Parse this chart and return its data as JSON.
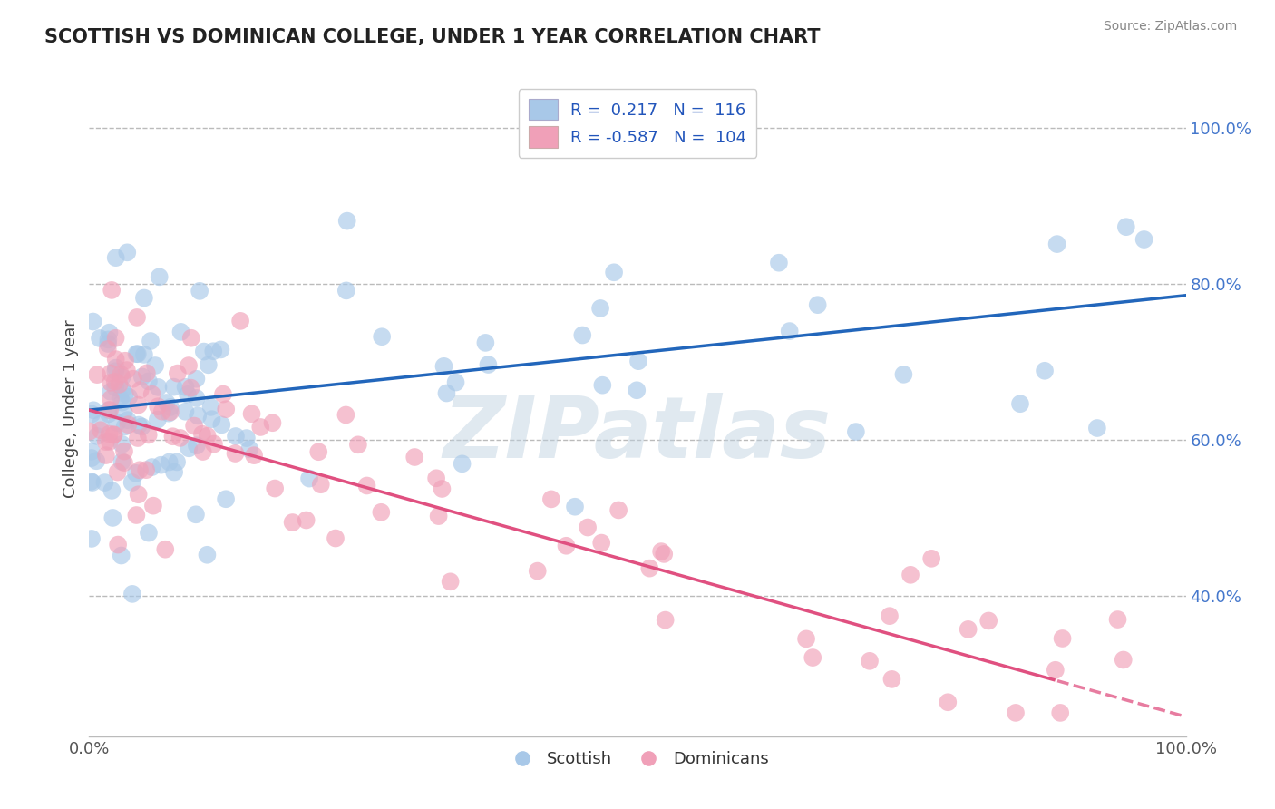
{
  "title": "SCOTTISH VS DOMINICAN COLLEGE, UNDER 1 YEAR CORRELATION CHART",
  "source": "Source: ZipAtlas.com",
  "ylabel": "College, Under 1 year",
  "xlim": [
    0.0,
    1.0
  ],
  "ylim": [
    0.22,
    1.06
  ],
  "y_ticks_right": [
    0.4,
    0.6,
    0.8,
    1.0
  ],
  "y_tick_labels_right": [
    "40.0%",
    "60.0%",
    "80.0%",
    "100.0%"
  ],
  "legend_R_blue": "0.217",
  "legend_N_blue": "116",
  "legend_R_pink": "-0.587",
  "legend_N_pink": "104",
  "blue_color": "#A8C8E8",
  "pink_color": "#F0A0B8",
  "trend_blue_color": "#2266BB",
  "trend_pink_color": "#E05080",
  "trend_blue_x0": 0.0,
  "trend_blue_y0": 0.638,
  "trend_blue_x1": 1.0,
  "trend_blue_y1": 0.785,
  "trend_pink_x0": 0.0,
  "trend_pink_y0": 0.638,
  "trend_pink_x1": 1.0,
  "trend_pink_y1": 0.245,
  "trend_pink_dashed_start": 0.88,
  "watermark": "ZIPatlas",
  "background_color": "#FFFFFF",
  "grid_color": "#BBBBBB",
  "grid_style": "--"
}
